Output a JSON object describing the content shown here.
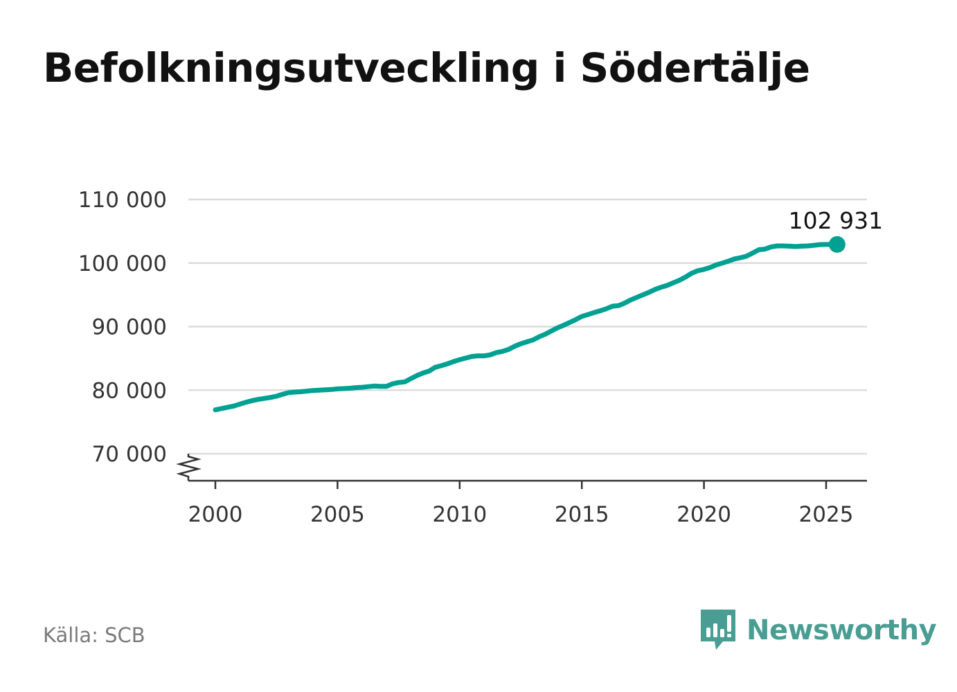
{
  "chart_data": {
    "type": "line",
    "title": "Befolkningsutveckling i Södertälje",
    "xlabel": "",
    "ylabel": "",
    "xlim": [
      1999.8,
      2026.6
    ],
    "ylim": [
      65700,
      110000
    ],
    "y_ticks": [
      70000,
      80000,
      90000,
      100000,
      110000
    ],
    "y_tick_labels": [
      "70 000",
      "80 000",
      "90 000",
      "100 000",
      "110 000"
    ],
    "x_ticks": [
      2000,
      2005,
      2010,
      2015,
      2020,
      2025
    ],
    "x_tick_labels": [
      "2000",
      "2005",
      "2010",
      "2015",
      "2020",
      "2025"
    ],
    "grid": true,
    "axis_break": true,
    "line_color": "#00a193",
    "series": [
      {
        "x": [
          2000.0,
          2000.5,
          2000.75,
          2001.0,
          2001.25,
          2001.5,
          2001.75,
          2002.0,
          2002.25,
          2002.5,
          2002.75,
          2003.0,
          2003.25,
          2003.5,
          2003.75,
          2004.0,
          2004.25,
          2004.5,
          2004.75,
          2005.0,
          2005.25,
          2005.5,
          2005.75,
          2006.0,
          2006.25,
          2006.5,
          2006.75,
          2007.0,
          2007.25,
          2007.5,
          2007.75,
          2008.0,
          2008.25,
          2008.5,
          2008.75,
          2009.0,
          2009.25,
          2009.5,
          2009.75,
          2010.0,
          2010.25,
          2010.5,
          2010.75,
          2011.0,
          2011.25,
          2011.5,
          2011.75,
          2012.0,
          2012.25,
          2012.5,
          2012.75,
          2013.0,
          2013.25,
          2013.5,
          2013.75,
          2014.0,
          2014.25,
          2014.5,
          2014.75,
          2015.0,
          2015.25,
          2015.5,
          2015.75,
          2016.0,
          2016.25,
          2016.5,
          2016.75,
          2017.0,
          2017.25,
          2017.5,
          2017.75,
          2018.0,
          2018.25,
          2018.5,
          2018.75,
          2019.0,
          2019.25,
          2019.5,
          2019.75,
          2020.0,
          2020.25,
          2020.5,
          2020.75,
          2021.0,
          2021.25,
          2021.5,
          2021.75,
          2022.0,
          2022.25,
          2022.5,
          2022.75,
          2023.0,
          2023.25,
          2023.5,
          2023.75,
          2024.0,
          2024.25,
          2024.5,
          2024.75,
          2025.0,
          2025.25,
          2025.45
        ],
        "values": [
          76900,
          77300,
          77500,
          77800,
          78100,
          78350,
          78550,
          78700,
          78850,
          79050,
          79350,
          79600,
          79700,
          79750,
          79850,
          79950,
          80000,
          80050,
          80100,
          80200,
          80250,
          80300,
          80400,
          80450,
          80550,
          80650,
          80600,
          80600,
          81000,
          81200,
          81300,
          81800,
          82300,
          82700,
          83000,
          83600,
          83850,
          84150,
          84500,
          84800,
          85050,
          85300,
          85400,
          85400,
          85550,
          85900,
          86100,
          86400,
          86900,
          87300,
          87600,
          87900,
          88400,
          88800,
          89300,
          89800,
          90200,
          90650,
          91100,
          91600,
          91900,
          92200,
          92500,
          92800,
          93200,
          93300,
          93700,
          94200,
          94600,
          95000,
          95400,
          95850,
          96200,
          96500,
          96900,
          97300,
          97800,
          98400,
          98800,
          99000,
          99300,
          99700,
          100000,
          100300,
          100650,
          100850,
          101100,
          101600,
          102100,
          102200,
          102550,
          102700,
          102700,
          102650,
          102600,
          102650,
          102700,
          102800,
          102900,
          102931,
          102931,
          102931
        ]
      }
    ],
    "end_point": {
      "x": 2025.45,
      "value": 102931,
      "label": "102 931"
    }
  },
  "source": "Källa: SCB",
  "brand": {
    "name": "Newsworthy",
    "color": "#4a9d92",
    "icon": "newsworthy-logo-icon"
  }
}
